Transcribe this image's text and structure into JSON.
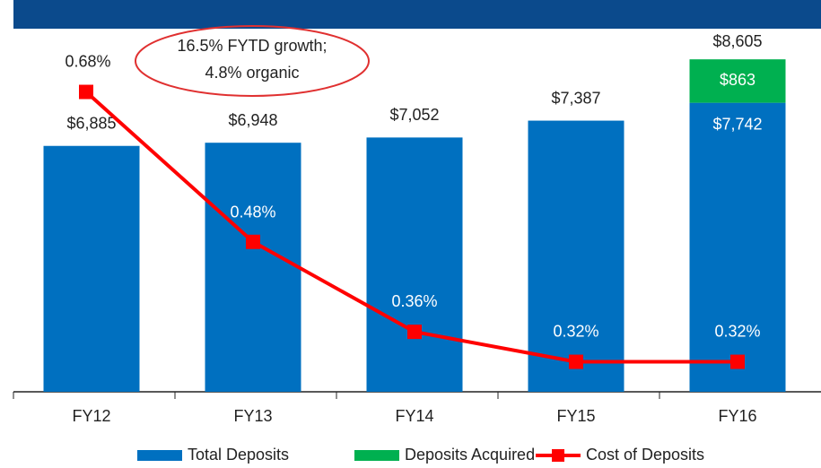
{
  "chart_data": {
    "type": "bar",
    "categories": [
      "FY12",
      "FY13",
      "FY14",
      "FY15",
      "FY16"
    ],
    "series": [
      {
        "name": "Total Deposits",
        "color": "#0070c0",
        "values": [
          6885,
          6948,
          7052,
          7387,
          7742
        ],
        "value_labels": [
          "$6,885",
          "$6,948",
          "$7,052",
          "$7,387",
          "$7,742"
        ]
      },
      {
        "name": "Deposits Acquired",
        "color": "#00b050",
        "values": [
          null,
          null,
          null,
          null,
          863
        ],
        "value_labels": [
          null,
          null,
          null,
          null,
          "$863"
        ]
      },
      {
        "name": "Cost of Deposits",
        "type": "line",
        "axis": "y2",
        "color": "#ff0000",
        "values": [
          0.68,
          0.48,
          0.36,
          0.32,
          0.32
        ],
        "value_labels": [
          "0.68%",
          "0.48%",
          "0.36%",
          "0.32%",
          "0.32%"
        ]
      }
    ],
    "totals": [
      null,
      null,
      null,
      null,
      8605
    ],
    "total_labels": [
      null,
      null,
      null,
      null,
      "$8,605"
    ],
    "annotation": [
      "16.5% FYTD growth;",
      "4.8% organic"
    ],
    "ylim": [
      2000,
      9000
    ],
    "y2lim": [
      0.28,
      0.75
    ],
    "legend": "bottom"
  }
}
